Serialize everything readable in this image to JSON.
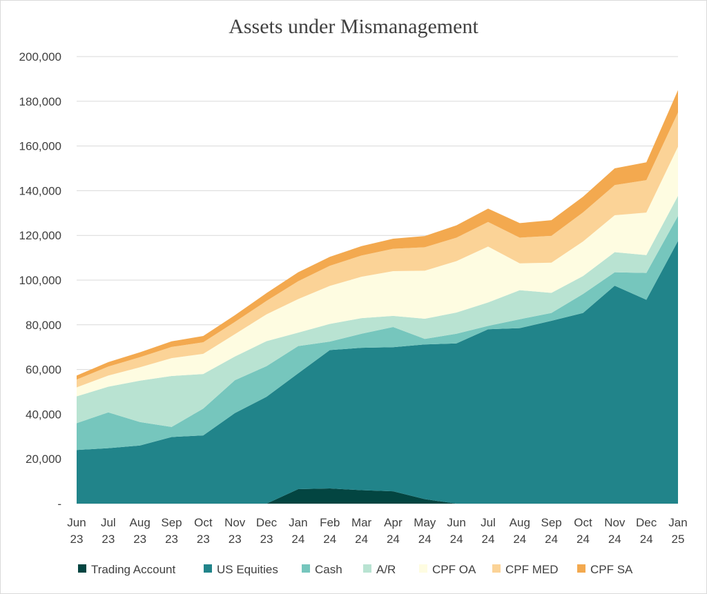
{
  "chart_data": {
    "type": "area",
    "stacked": true,
    "title": "Assets under Mismanagement",
    "xlabel": "",
    "ylabel": "",
    "ylim": [
      0,
      200000
    ],
    "y_ticks": [
      0,
      20000,
      40000,
      60000,
      80000,
      100000,
      120000,
      140000,
      160000,
      180000,
      200000
    ],
    "y_tick_labels": [
      "-",
      "20,000",
      "40,000",
      "60,000",
      "80,000",
      "100,000",
      "120,000",
      "140,000",
      "160,000",
      "180,000",
      "200,000"
    ],
    "categories": [
      [
        "Jun",
        "23"
      ],
      [
        "Jul",
        "23"
      ],
      [
        "Aug",
        "23"
      ],
      [
        "Sep",
        "23"
      ],
      [
        "Oct",
        "23"
      ],
      [
        "Nov",
        "23"
      ],
      [
        "Dec",
        "23"
      ],
      [
        "Jan",
        "24"
      ],
      [
        "Feb",
        "24"
      ],
      [
        "Mar",
        "24"
      ],
      [
        "Apr",
        "24"
      ],
      [
        "May",
        "24"
      ],
      [
        "Jun",
        "24"
      ],
      [
        "Jul",
        "24"
      ],
      [
        "Aug",
        "24"
      ],
      [
        "Sep",
        "24"
      ],
      [
        "Oct",
        "24"
      ],
      [
        "Nov",
        "24"
      ],
      [
        "Dec",
        "24"
      ],
      [
        "Jan",
        "25"
      ]
    ],
    "grid": true,
    "legend_position": "bottom",
    "series": [
      {
        "name": "Trading Account",
        "color": "#034541",
        "values": [
          0,
          0,
          0,
          0,
          0,
          0,
          0,
          6500,
          6800,
          6000,
          5500,
          2000,
          0,
          0,
          0,
          0,
          0,
          0,
          0,
          0
        ]
      },
      {
        "name": "US Equities",
        "color": "#21848a",
        "values": [
          24000,
          24800,
          26000,
          29800,
          30500,
          40500,
          47800,
          51800,
          61900,
          63700,
          64500,
          69200,
          71700,
          78000,
          78500,
          81800,
          85300,
          97500,
          91200,
          117500
        ]
      },
      {
        "name": "Cash",
        "color": "#76c6bd",
        "values": [
          12000,
          16000,
          10500,
          4500,
          12000,
          14700,
          13700,
          12200,
          3800,
          6300,
          9000,
          2500,
          4300,
          1500,
          4000,
          3500,
          8500,
          6000,
          12000,
          11200
        ]
      },
      {
        "name": "A/R",
        "color": "#b9e3d2",
        "values": [
          12000,
          11500,
          18500,
          22800,
          15500,
          10600,
          11200,
          6000,
          7900,
          7000,
          5000,
          9000,
          9500,
          10500,
          13000,
          9000,
          8000,
          9000,
          8000,
          9000
        ]
      },
      {
        "name": "CPF OA",
        "color": "#fefce1",
        "values": [
          4000,
          5000,
          6000,
          8000,
          9000,
          10000,
          12000,
          15000,
          17000,
          18500,
          20000,
          21500,
          23000,
          25000,
          12000,
          13500,
          15500,
          16500,
          19000,
          22000
        ]
      },
      {
        "name": "CPF MED",
        "color": "#fbd397",
        "values": [
          3500,
          4000,
          4500,
          5000,
          5200,
          5500,
          6000,
          8000,
          9000,
          9500,
          10000,
          10500,
          10500,
          11000,
          11500,
          12000,
          13000,
          13500,
          14500,
          15300
        ]
      },
      {
        "name": "CPF SA",
        "color": "#f3a94f",
        "values": [
          1800,
          2000,
          2200,
          2500,
          2800,
          3000,
          3500,
          4000,
          4000,
          4200,
          4500,
          5000,
          5500,
          6000,
          6500,
          7000,
          7000,
          7500,
          8000,
          10000
        ]
      }
    ]
  }
}
